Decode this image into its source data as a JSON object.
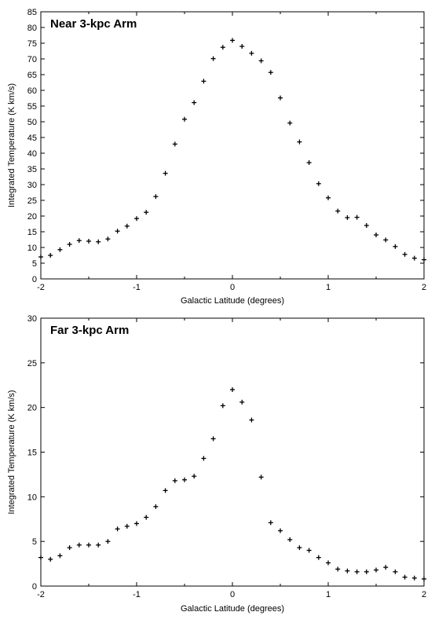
{
  "chart_data": [
    {
      "type": "scatter",
      "title": "Near 3-kpc Arm",
      "xlabel": "Galactic Latitude (degrees)",
      "ylabel": "Integrated Temperature (K km/s)",
      "xlim": [
        -2,
        2
      ],
      "ylim": [
        0,
        85
      ],
      "xticks": [
        -2,
        -1,
        0,
        1,
        2
      ],
      "yticks": [
        0,
        5,
        10,
        15,
        20,
        25,
        30,
        35,
        40,
        45,
        50,
        55,
        60,
        65,
        70,
        75,
        80,
        85
      ],
      "grid": false,
      "marker": "plus",
      "x": [
        -2.0,
        -1.9,
        -1.8,
        -1.7,
        -1.6,
        -1.5,
        -1.4,
        -1.3,
        -1.2,
        -1.1,
        -1.0,
        -0.9,
        -0.8,
        -0.7,
        -0.6,
        -0.5,
        -0.4,
        -0.3,
        -0.2,
        -0.1,
        0.0,
        0.1,
        0.2,
        0.3,
        0.4,
        0.5,
        0.6,
        0.7,
        0.8,
        0.9,
        1.0,
        1.1,
        1.2,
        1.3,
        1.4,
        1.5,
        1.6,
        1.7,
        1.8,
        1.9,
        2.0
      ],
      "y": [
        7.0,
        7.5,
        9.3,
        11.0,
        12.2,
        12.0,
        11.8,
        12.7,
        15.2,
        16.8,
        19.2,
        21.2,
        26.2,
        33.6,
        42.9,
        50.8,
        56.1,
        62.9,
        70.1,
        73.7,
        75.9,
        74.0,
        71.8,
        69.4,
        65.7,
        57.6,
        49.6,
        43.6,
        37.0,
        30.3,
        25.8,
        21.6,
        19.5,
        19.6,
        17.0,
        14.0,
        12.4,
        10.3,
        7.8,
        6.6,
        6.1
      ]
    },
    {
      "type": "scatter",
      "title": "Far 3-kpc Arm",
      "xlabel": "Galactic Latitude (degrees)",
      "ylabel": "Integrated Temperature (K km/s)",
      "xlim": [
        -2,
        2
      ],
      "ylim": [
        0,
        30
      ],
      "xticks": [
        -2,
        -1,
        0,
        1,
        2
      ],
      "yticks": [
        0,
        5,
        10,
        15,
        20,
        25,
        30
      ],
      "grid": false,
      "marker": "plus",
      "x": [
        -2.0,
        -1.9,
        -1.8,
        -1.7,
        -1.6,
        -1.5,
        -1.4,
        -1.3,
        -1.2,
        -1.1,
        -1.0,
        -0.9,
        -0.8,
        -0.7,
        -0.6,
        -0.5,
        -0.4,
        -0.3,
        -0.2,
        -0.1,
        0.0,
        0.1,
        0.2,
        0.3,
        0.4,
        0.5,
        0.6,
        0.7,
        0.8,
        0.9,
        1.0,
        1.1,
        1.2,
        1.3,
        1.4,
        1.5,
        1.6,
        1.7,
        1.8,
        1.9,
        2.0
      ],
      "y": [
        3.2,
        3.0,
        3.4,
        4.3,
        4.6,
        4.6,
        4.6,
        5.0,
        6.4,
        6.7,
        7.0,
        7.7,
        8.9,
        10.7,
        11.8,
        11.9,
        12.3,
        14.3,
        16.5,
        20.2,
        22.0,
        20.6,
        18.6,
        12.2,
        7.1,
        6.2,
        5.2,
        4.3,
        4.0,
        3.2,
        2.6,
        1.9,
        1.7,
        1.6,
        1.6,
        1.8,
        2.1,
        1.6,
        1.0,
        0.9,
        0.8
      ]
    }
  ]
}
